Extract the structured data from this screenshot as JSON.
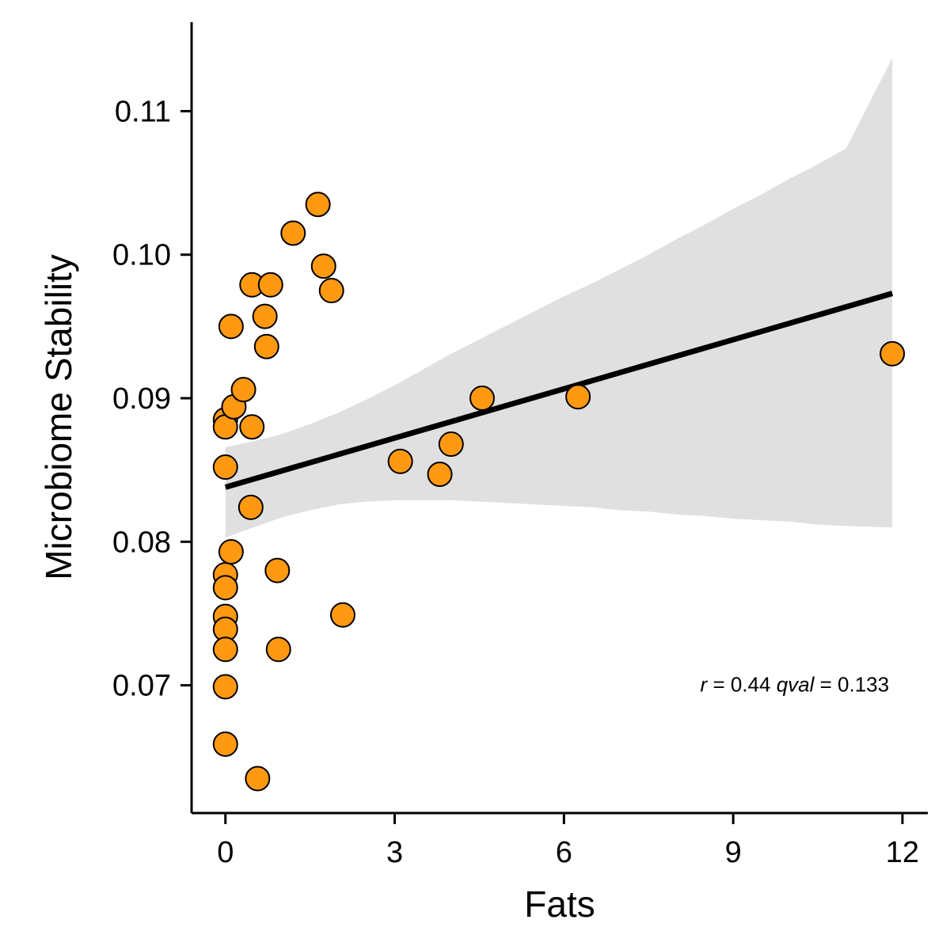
{
  "chart_data": {
    "type": "scatter",
    "xlabel": "Fats",
    "ylabel": "Microbiome Stability",
    "xlim": [
      -0.6,
      12.45
    ],
    "ylim": [
      0.0611,
      0.1162
    ],
    "xticks": [
      0,
      3,
      6,
      9,
      12
    ],
    "xtick_labels": [
      "0",
      "3",
      "6",
      "9",
      "12"
    ],
    "yticks": [
      0.07,
      0.08,
      0.09,
      0.1,
      0.11
    ],
    "ytick_labels": [
      "0.07",
      "0.08",
      "0.09",
      "0.10",
      "0.11"
    ],
    "grid": false,
    "legend": "none",
    "point_color": "#FF9912",
    "point_edge_color": "#000000",
    "band_color": "#E0E0E0",
    "line_color": "#000000",
    "points": [
      {
        "x": 0.0,
        "y": 0.0885
      },
      {
        "x": 0.0,
        "y": 0.088
      },
      {
        "x": 0.0,
        "y": 0.0852
      },
      {
        "x": 0.0,
        "y": 0.0777
      },
      {
        "x": 0.0,
        "y": 0.0768
      },
      {
        "x": 0.0,
        "y": 0.0748
      },
      {
        "x": 0.0,
        "y": 0.0739
      },
      {
        "x": 0.0,
        "y": 0.0725
      },
      {
        "x": 0.0,
        "y": 0.0699
      },
      {
        "x": 0.0,
        "y": 0.0659
      },
      {
        "x": 0.1,
        "y": 0.095
      },
      {
        "x": 0.15,
        "y": 0.0894
      },
      {
        "x": 0.1,
        "y": 0.0793
      },
      {
        "x": 0.32,
        "y": 0.0906
      },
      {
        "x": 0.47,
        "y": 0.0979
      },
      {
        "x": 0.47,
        "y": 0.088
      },
      {
        "x": 0.45,
        "y": 0.0824
      },
      {
        "x": 0.57,
        "y": 0.0635
      },
      {
        "x": 0.7,
        "y": 0.0957
      },
      {
        "x": 0.73,
        "y": 0.0936
      },
      {
        "x": 0.8,
        "y": 0.0979
      },
      {
        "x": 0.92,
        "y": 0.078
      },
      {
        "x": 0.94,
        "y": 0.0725
      },
      {
        "x": 1.2,
        "y": 0.1015
      },
      {
        "x": 1.64,
        "y": 0.1035
      },
      {
        "x": 1.74,
        "y": 0.0992
      },
      {
        "x": 1.88,
        "y": 0.0975
      },
      {
        "x": 2.08,
        "y": 0.0749
      },
      {
        "x": 3.1,
        "y": 0.0856
      },
      {
        "x": 3.8,
        "y": 0.0847
      },
      {
        "x": 4.0,
        "y": 0.0868
      },
      {
        "x": 4.55,
        "y": 0.09
      },
      {
        "x": 6.25,
        "y": 0.0901
      },
      {
        "x": 11.82,
        "y": 0.0931
      }
    ],
    "fit_line": {
      "x": [
        0.0,
        11.82
      ],
      "y": [
        0.0838,
        0.0973
      ]
    },
    "confidence_band": {
      "x": [
        0.0,
        0.5,
        1.0,
        1.5,
        2.0,
        2.5,
        3.0,
        3.5,
        4.0,
        4.5,
        5.0,
        5.5,
        6.0,
        6.5,
        7.0,
        7.5,
        8.0,
        8.5,
        9.0,
        9.5,
        10.0,
        10.5,
        11.0,
        11.82
      ],
      "lower": [
        0.0803,
        0.081,
        0.0817,
        0.0822,
        0.0826,
        0.0828,
        0.0829,
        0.0829,
        0.0829,
        0.0828,
        0.0827,
        0.0826,
        0.0825,
        0.0824,
        0.0822,
        0.0821,
        0.0819,
        0.0818,
        0.0816,
        0.0815,
        0.0814,
        0.0812,
        0.0811,
        0.081
      ],
      "upper": [
        0.0866,
        0.087,
        0.0875,
        0.0882,
        0.089,
        0.0899,
        0.0909,
        0.092,
        0.0931,
        0.0941,
        0.0951,
        0.0961,
        0.0971,
        0.098,
        0.099,
        0.1,
        0.1011,
        0.1021,
        0.1032,
        0.1042,
        0.1053,
        0.1063,
        0.1074,
        0.1137
      ]
    },
    "annotation": {
      "r_symbol": "r",
      "r_text": " = 0.44 ",
      "q_symbol": "qval",
      "q_text": " = 0.133",
      "x": 11.82,
      "y": 0.07
    }
  }
}
